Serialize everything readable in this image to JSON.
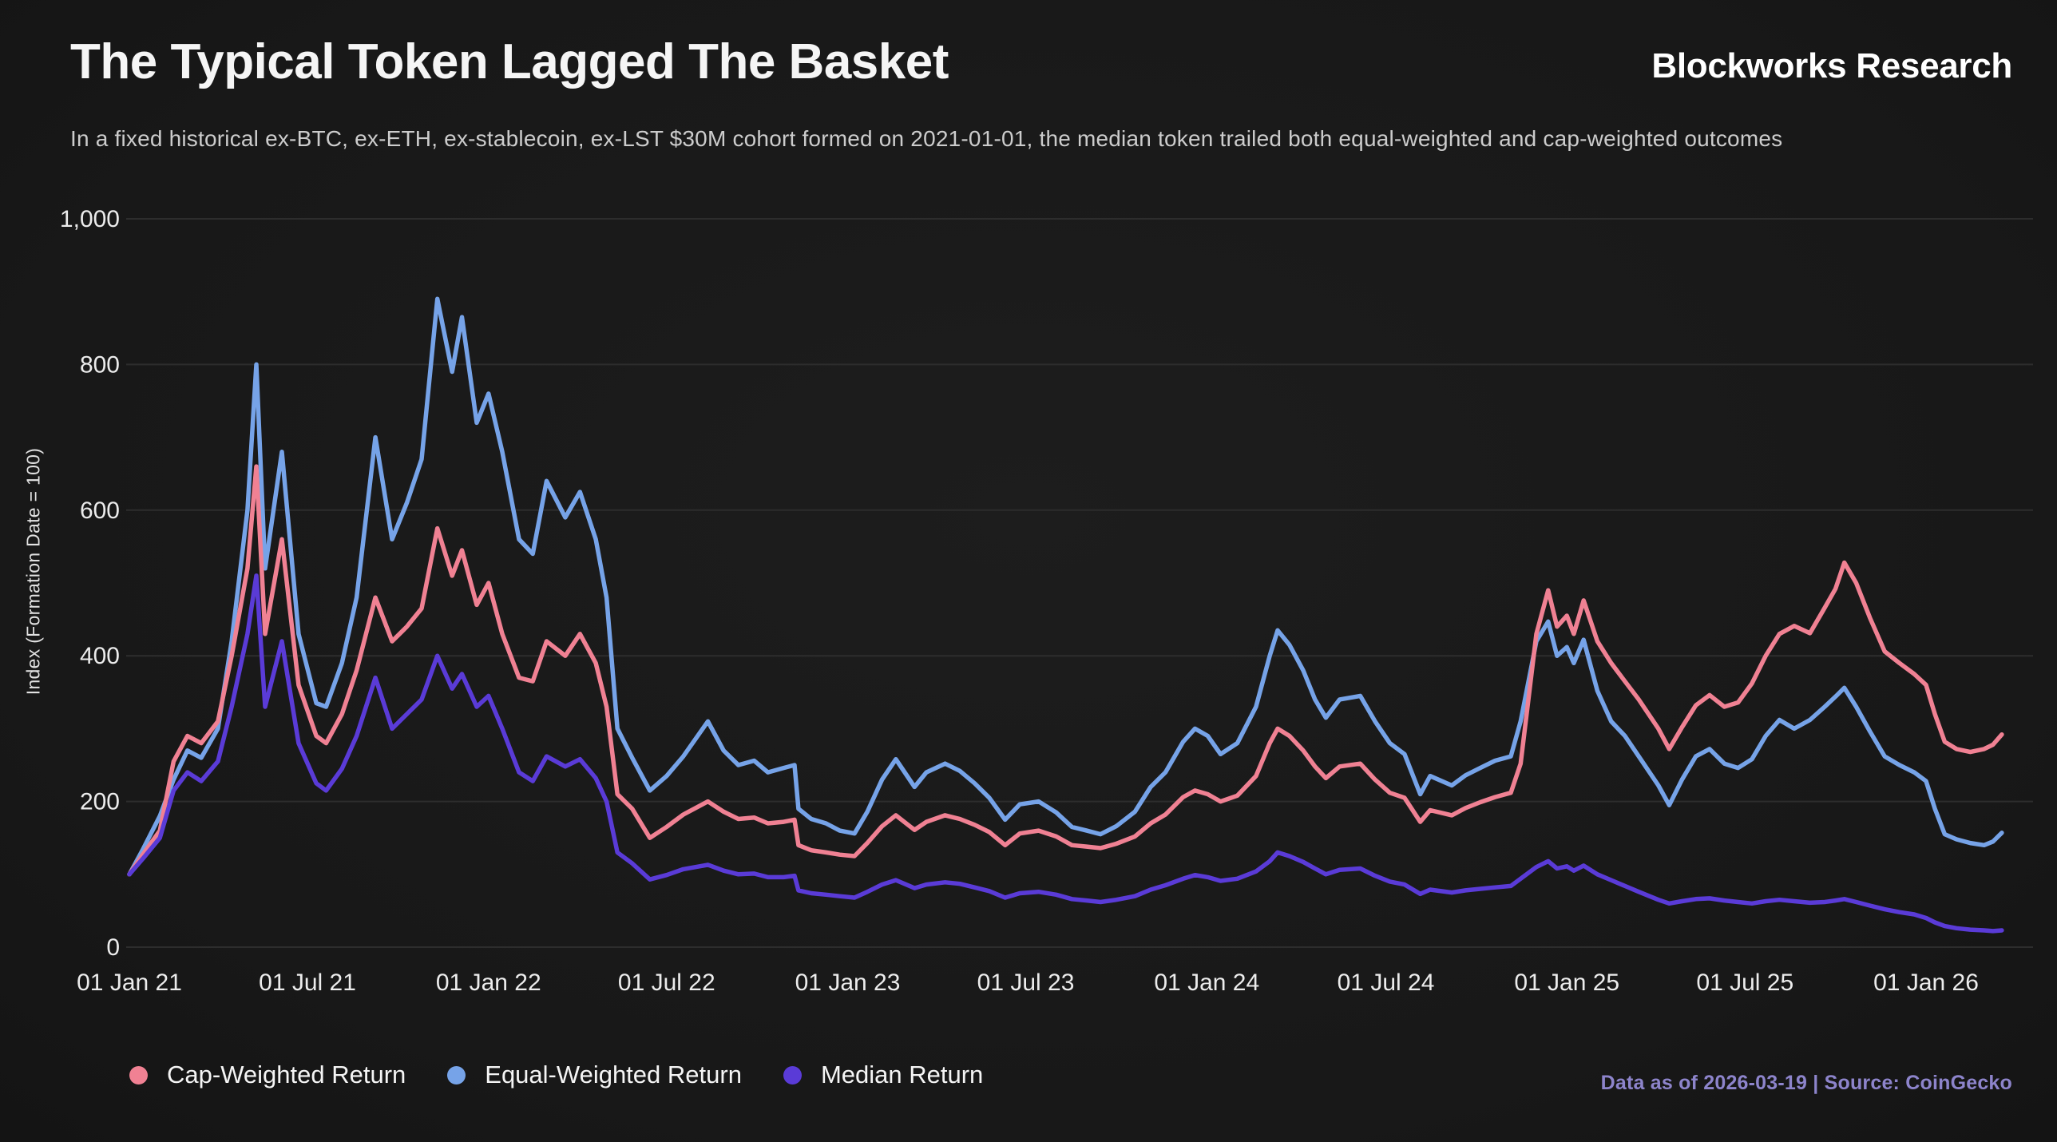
{
  "header": {
    "title": "The Typical Token Lagged The Basket",
    "subtitle": "In a fixed historical ex-BTC, ex-ETH, ex-stablecoin, ex-LST $30M cohort formed on 2021-01-01, the median token trailed both equal-weighted and cap-weighted outcomes",
    "brand": "Blockworks Research"
  },
  "footer": {
    "source_note": "Data as of 2026-03-19 | Source: CoinGecko"
  },
  "chart_data": {
    "type": "line",
    "title": "The Typical Token Lagged The Basket",
    "xlabel": "",
    "ylabel": "Index (Formation Date = 100)",
    "ylim": [
      0,
      1000
    ],
    "grid": "horizontal",
    "legend_position": "bottom",
    "colors": {
      "background": "#1b1b1b",
      "gridline": "#2d2d2d",
      "tick_text": "#ececec"
    },
    "yticks": [
      0,
      200,
      400,
      600,
      800,
      1000
    ],
    "ytick_labels": [
      "0",
      "200",
      "400",
      "600",
      "800",
      "1,000"
    ],
    "xticks": [
      {
        "date": "2021-01-01",
        "label": "01 Jan 21"
      },
      {
        "date": "2021-07-01",
        "label": "01 Jul 21"
      },
      {
        "date": "2022-01-01",
        "label": "01 Jan 22"
      },
      {
        "date": "2022-07-01",
        "label": "01 Jul 22"
      },
      {
        "date": "2023-01-01",
        "label": "01 Jan 23"
      },
      {
        "date": "2023-07-01",
        "label": "01 Jul 23"
      },
      {
        "date": "2024-01-01",
        "label": "01 Jan 24"
      },
      {
        "date": "2024-07-01",
        "label": "01 Jul 24"
      },
      {
        "date": "2025-01-01",
        "label": "01 Jan 25"
      },
      {
        "date": "2025-07-01",
        "label": "01 Jul 25"
      },
      {
        "date": "2026-01-01",
        "label": "01 Jan 26"
      }
    ],
    "x_dates": [
      "2021-01-01",
      "2021-01-15",
      "2021-02-01",
      "2021-02-15",
      "2021-03-01",
      "2021-03-15",
      "2021-04-01",
      "2021-04-15",
      "2021-05-01",
      "2021-05-10",
      "2021-05-19",
      "2021-06-05",
      "2021-06-22",
      "2021-07-10",
      "2021-07-20",
      "2021-08-05",
      "2021-08-20",
      "2021-09-08",
      "2021-09-25",
      "2021-10-10",
      "2021-10-25",
      "2021-11-10",
      "2021-11-25",
      "2021-12-05",
      "2021-12-20",
      "2022-01-01",
      "2022-01-15",
      "2022-02-01",
      "2022-02-15",
      "2022-03-01",
      "2022-03-20",
      "2022-04-04",
      "2022-04-20",
      "2022-05-01",
      "2022-05-12",
      "2022-05-27",
      "2022-06-14",
      "2022-07-01",
      "2022-07-18",
      "2022-08-12",
      "2022-08-28",
      "2022-09-12",
      "2022-09-28",
      "2022-10-12",
      "2022-10-28",
      "2022-11-08",
      "2022-11-12",
      "2022-11-25",
      "2022-12-10",
      "2022-12-24",
      "2023-01-08",
      "2023-01-21",
      "2023-02-05",
      "2023-02-19",
      "2023-03-10",
      "2023-03-22",
      "2023-04-10",
      "2023-04-25",
      "2023-05-10",
      "2023-05-25",
      "2023-06-10",
      "2023-06-25",
      "2023-07-14",
      "2023-08-01",
      "2023-08-17",
      "2023-09-01",
      "2023-09-15",
      "2023-10-01",
      "2023-10-20",
      "2023-11-05",
      "2023-11-20",
      "2023-12-08",
      "2023-12-20",
      "2024-01-02",
      "2024-01-15",
      "2024-02-01",
      "2024-02-20",
      "2024-03-05",
      "2024-03-13",
      "2024-03-25",
      "2024-04-08",
      "2024-04-20",
      "2024-05-01",
      "2024-05-15",
      "2024-06-05",
      "2024-06-20",
      "2024-07-05",
      "2024-07-20",
      "2024-08-05",
      "2024-08-15",
      "2024-09-06",
      "2024-09-20",
      "2024-10-05",
      "2024-10-20",
      "2024-11-05",
      "2024-11-15",
      "2024-12-01",
      "2024-12-13",
      "2024-12-22",
      "2025-01-01",
      "2025-01-08",
      "2025-01-18",
      "2025-02-01",
      "2025-02-15",
      "2025-03-01",
      "2025-03-15",
      "2025-04-04",
      "2025-04-15",
      "2025-04-28",
      "2025-05-12",
      "2025-05-26",
      "2025-06-10",
      "2025-06-24",
      "2025-07-08",
      "2025-07-22",
      "2025-08-05",
      "2025-08-20",
      "2025-09-05",
      "2025-09-20",
      "2025-10-01",
      "2025-10-10",
      "2025-10-22",
      "2025-11-05",
      "2025-11-20",
      "2025-12-05",
      "2025-12-20",
      "2026-01-01",
      "2026-01-10",
      "2026-01-20",
      "2026-02-01",
      "2026-02-15",
      "2026-03-01",
      "2026-03-10",
      "2026-03-19"
    ],
    "series": [
      {
        "name": "Cap-Weighted Return",
        "color": "#f08193",
        "values": [
          100,
          128,
          160,
          255,
          290,
          280,
          310,
          400,
          520,
          660,
          430,
          560,
          360,
          290,
          280,
          320,
          380,
          480,
          420,
          440,
          465,
          575,
          510,
          545,
          470,
          500,
          430,
          370,
          365,
          420,
          400,
          430,
          390,
          330,
          210,
          190,
          150,
          165,
          182,
          200,
          186,
          176,
          178,
          170,
          172,
          175,
          140,
          133,
          130,
          127,
          125,
          143,
          166,
          181,
          161,
          172,
          181,
          176,
          168,
          158,
          140,
          156,
          160,
          152,
          140,
          138,
          136,
          142,
          152,
          170,
          182,
          206,
          215,
          210,
          200,
          208,
          235,
          280,
          300,
          290,
          270,
          248,
          232,
          248,
          252,
          230,
          212,
          205,
          172,
          188,
          181,
          191,
          199,
          206,
          212,
          252,
          430,
          490,
          440,
          455,
          430,
          476,
          420,
          390,
          365,
          340,
          300,
          272,
          302,
          332,
          346,
          330,
          336,
          362,
          400,
          430,
          441,
          431,
          466,
          492,
          528,
          500,
          452,
          406,
          390,
          375,
          360,
          320,
          282,
          272,
          268,
          272,
          278,
          292
        ]
      },
      {
        "name": "Equal-Weighted Return",
        "color": "#76a3e8",
        "values": [
          100,
          135,
          180,
          230,
          270,
          260,
          300,
          420,
          600,
          800,
          520,
          680,
          430,
          335,
          330,
          390,
          480,
          700,
          560,
          610,
          670,
          890,
          790,
          865,
          720,
          760,
          680,
          560,
          540,
          640,
          590,
          625,
          560,
          480,
          300,
          260,
          215,
          235,
          262,
          310,
          270,
          250,
          256,
          240,
          246,
          250,
          190,
          176,
          170,
          160,
          156,
          186,
          230,
          258,
          220,
          240,
          252,
          242,
          225,
          205,
          175,
          196,
          200,
          185,
          165,
          160,
          155,
          166,
          186,
          220,
          240,
          282,
          300,
          290,
          265,
          280,
          330,
          400,
          435,
          415,
          380,
          340,
          315,
          340,
          345,
          310,
          280,
          265,
          210,
          235,
          222,
          236,
          246,
          256,
          262,
          310,
          420,
          447,
          400,
          412,
          390,
          422,
          352,
          310,
          290,
          262,
          222,
          195,
          230,
          262,
          272,
          252,
          246,
          258,
          290,
          312,
          300,
          312,
          330,
          344,
          356,
          330,
          296,
          262,
          250,
          240,
          228,
          190,
          155,
          148,
          143,
          140,
          145,
          157
        ]
      },
      {
        "name": "Median Return",
        "color": "#5a3bd7",
        "values": [
          100,
          122,
          150,
          215,
          240,
          228,
          255,
          330,
          430,
          510,
          330,
          420,
          280,
          225,
          215,
          245,
          290,
          370,
          300,
          320,
          340,
          400,
          355,
          375,
          330,
          345,
          300,
          240,
          228,
          262,
          248,
          258,
          232,
          200,
          130,
          115,
          93,
          99,
          107,
          113,
          105,
          100,
          101,
          96,
          96,
          98,
          78,
          74,
          72,
          70,
          68,
          76,
          86,
          92,
          81,
          86,
          89,
          87,
          82,
          77,
          68,
          74,
          76,
          72,
          66,
          64,
          62,
          65,
          70,
          79,
          85,
          94,
          99,
          96,
          91,
          94,
          104,
          118,
          130,
          125,
          117,
          108,
          100,
          106,
          108,
          98,
          90,
          86,
          73,
          79,
          75,
          78,
          80,
          82,
          84,
          94,
          110,
          118,
          108,
          111,
          105,
          112,
          100,
          92,
          84,
          76,
          65,
          60,
          63,
          66,
          67,
          64,
          62,
          60,
          63,
          65,
          63,
          61,
          62,
          64,
          66,
          62,
          57,
          52,
          48,
          45,
          40,
          34,
          29,
          26,
          24,
          23,
          22,
          23
        ]
      }
    ]
  }
}
